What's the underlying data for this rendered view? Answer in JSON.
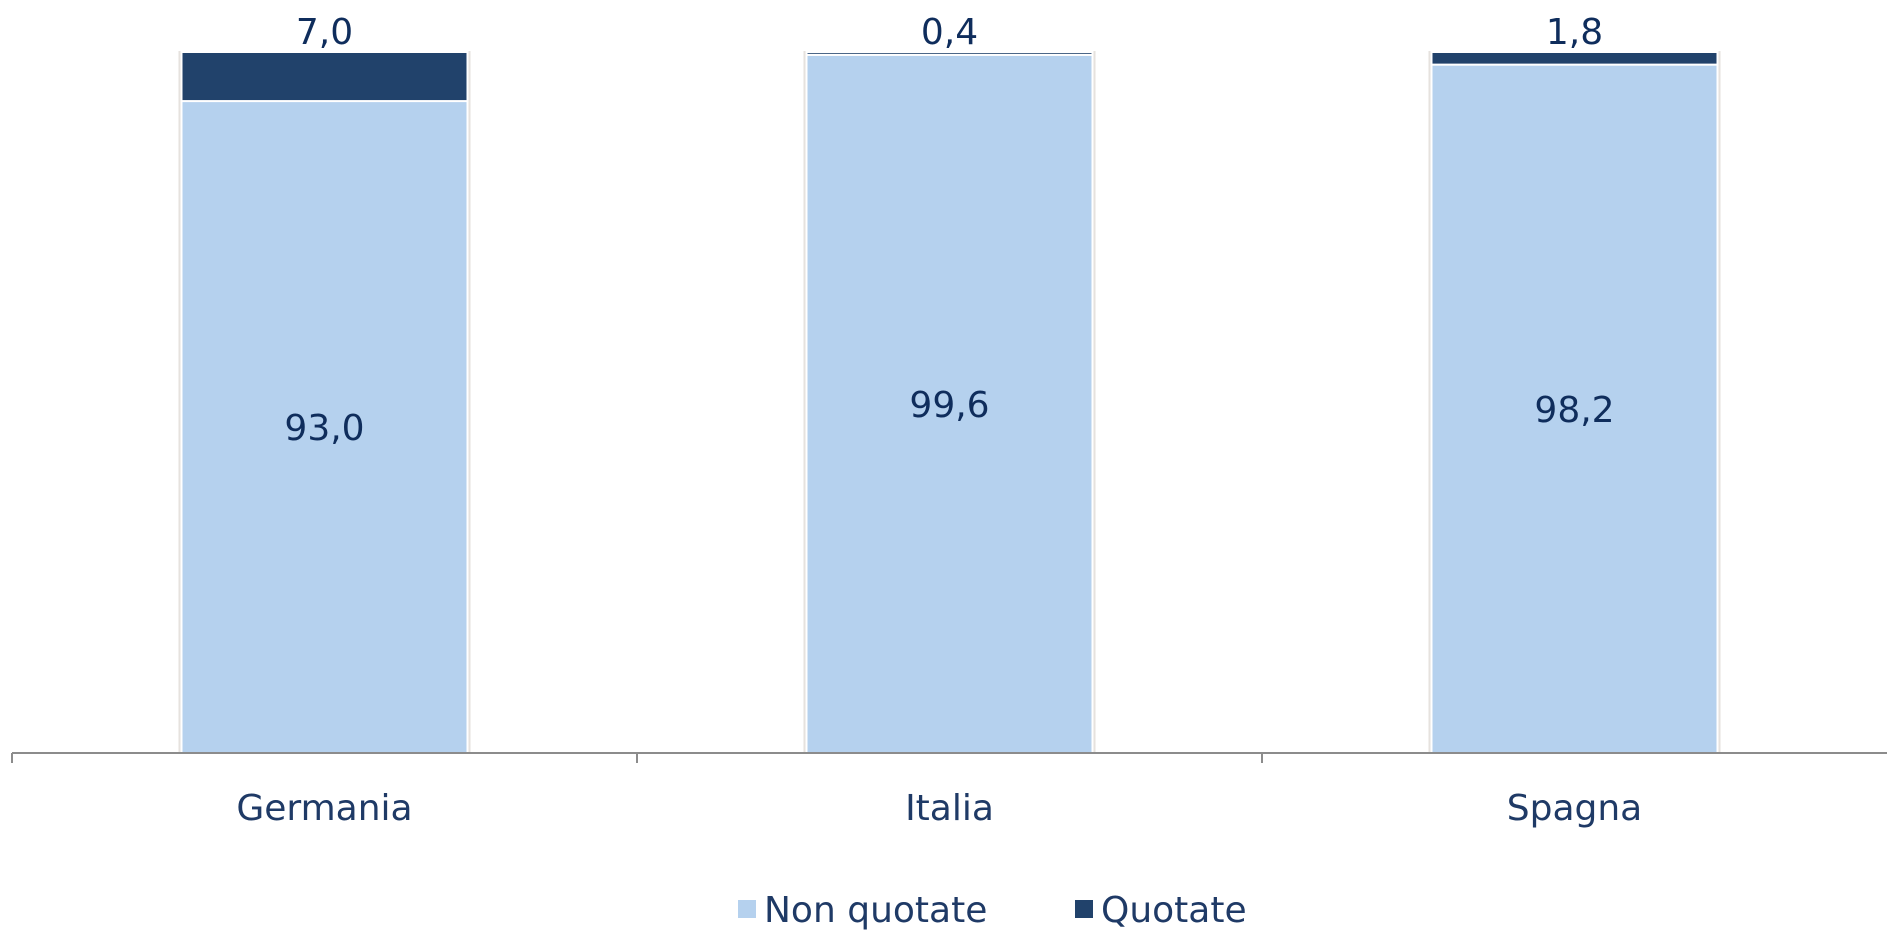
{
  "chart_data": {
    "type": "bar",
    "stacked": true,
    "categories": [
      "Germania",
      "Italia",
      "Spagna"
    ],
    "series": [
      {
        "name": "Non quotate",
        "values": [
          93.0,
          99.6,
          98.2
        ],
        "labels": [
          "93,0",
          "99,6",
          "98,2"
        ],
        "color": "#b5d1ee"
      },
      {
        "name": "Quotate",
        "values": [
          7.0,
          0.4,
          1.8
        ],
        "labels": [
          "7,0",
          "0,4",
          "1,8"
        ],
        "color": "#21426b"
      }
    ],
    "title": "",
    "xlabel": "",
    "ylabel": "",
    "ylim": [
      0,
      100
    ],
    "grid": false,
    "legend": "bottom-center",
    "label_color_inside_dark": "#ffffff",
    "label_color": "#0f2d5c",
    "axis_color": "#8c8c8c"
  }
}
